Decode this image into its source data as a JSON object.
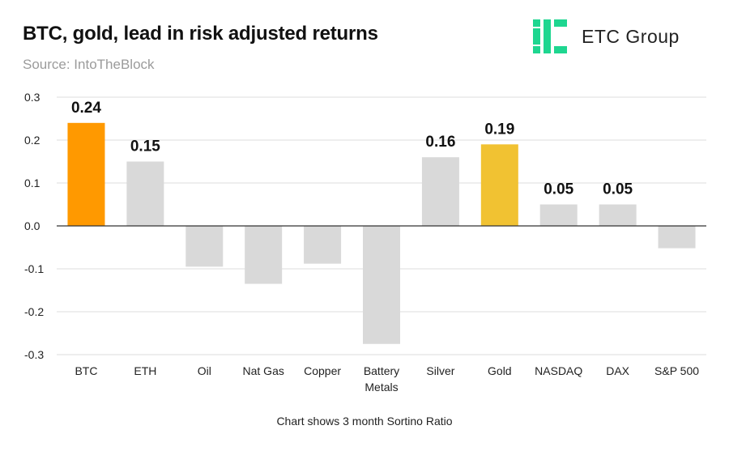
{
  "header": {
    "title": "BTC, gold, lead in risk adjusted returns",
    "source": "Source: IntoTheBlock"
  },
  "logo": {
    "brand": "ETC Group",
    "color": "#1ed690"
  },
  "footer": {
    "caption": "Chart shows 3 month Sortino Ratio"
  },
  "chart_data": {
    "type": "bar",
    "title": "BTC, gold, lead in risk adjusted returns",
    "xlabel": "",
    "ylabel": "",
    "ylim": [
      -0.3,
      0.3
    ],
    "yticks": [
      0.3,
      0.2,
      0.1,
      0.0,
      -0.1,
      -0.2,
      -0.3
    ],
    "ytick_labels": [
      "0.3",
      "0.2",
      "0.1",
      "0.0",
      "-0.1",
      "-0.2",
      "-0.3"
    ],
    "grid": true,
    "categories": [
      "BTC",
      "ETH",
      "Oil",
      "Nat Gas",
      "Copper",
      "Battery Metals",
      "Silver",
      "Gold",
      "NASDAQ",
      "DAX",
      "S&P 500"
    ],
    "category_lines": [
      [
        "BTC"
      ],
      [
        "ETH"
      ],
      [
        "Oil"
      ],
      [
        "Nat Gas"
      ],
      [
        "Copper"
      ],
      [
        "Battery",
        "Metals"
      ],
      [
        "Silver"
      ],
      [
        "Gold"
      ],
      [
        "NASDAQ"
      ],
      [
        "DAX"
      ],
      [
        "S&P 500"
      ]
    ],
    "values": [
      0.24,
      0.15,
      -0.095,
      -0.135,
      -0.088,
      -0.275,
      0.16,
      0.19,
      0.05,
      0.05,
      -0.052
    ],
    "data_labels": [
      "0.24",
      "0.15",
      "",
      "",
      "",
      "",
      "0.16",
      "0.19",
      "0.05",
      "0.05",
      ""
    ],
    "colors": [
      "#ff9900",
      "#d9d9d9",
      "#d9d9d9",
      "#d9d9d9",
      "#d9d9d9",
      "#d9d9d9",
      "#d9d9d9",
      "#f1c232",
      "#d9d9d9",
      "#d9d9d9",
      "#d9d9d9"
    ],
    "gridline_color": "#dcdcdc",
    "zero_line_color": "#333333"
  }
}
